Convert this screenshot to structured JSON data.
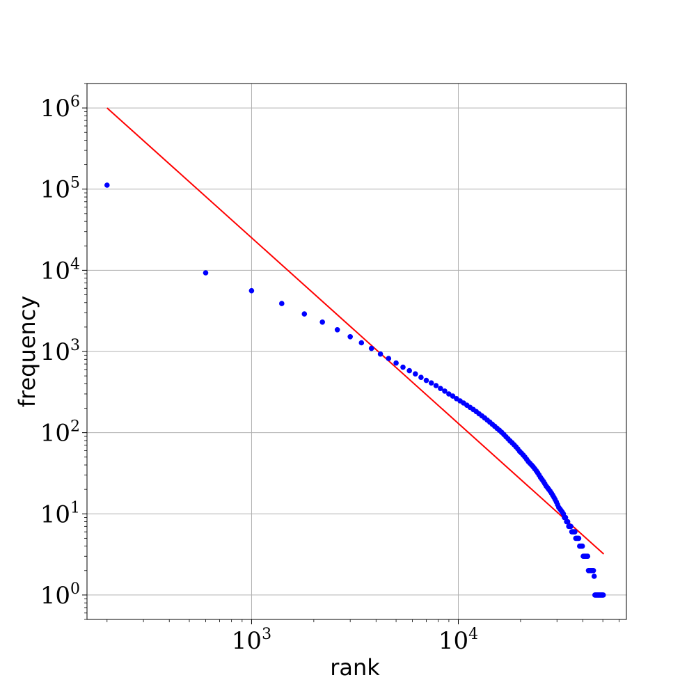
{
  "chart_data": {
    "type": "scatter",
    "title": "",
    "xlabel": "rank",
    "ylabel": "frequency",
    "xscale": "log",
    "yscale": "log",
    "xlim": [
      160,
      65000
    ],
    "ylim": [
      0.5,
      2000000
    ],
    "grid": true,
    "x_ticks": [
      {
        "value": 1000,
        "base": "10",
        "exp": "3"
      },
      {
        "value": 10000,
        "base": "10",
        "exp": "4"
      }
    ],
    "y_ticks": [
      {
        "value": 1,
        "base": "10",
        "exp": "0"
      },
      {
        "value": 10,
        "base": "10",
        "exp": "1"
      },
      {
        "value": 100,
        "base": "10",
        "exp": "2"
      },
      {
        "value": 1000,
        "base": "10",
        "exp": "3"
      },
      {
        "value": 10000,
        "base": "10",
        "exp": "4"
      },
      {
        "value": 100000,
        "base": "10",
        "exp": "5"
      },
      {
        "value": 1000000,
        "base": "10",
        "exp": "6"
      }
    ],
    "series": [
      {
        "kind": "scatter",
        "color": "#0000ff",
        "points": [
          [
            200,
            112000
          ],
          [
            600,
            9300
          ],
          [
            1000,
            5600
          ],
          [
            1400,
            3900
          ],
          [
            1800,
            2900
          ],
          [
            2200,
            2300
          ],
          [
            2600,
            1850
          ],
          [
            3000,
            1520
          ],
          [
            3400,
            1280
          ],
          [
            3800,
            1090
          ],
          [
            4200,
            930
          ],
          [
            4600,
            820
          ],
          [
            5000,
            720
          ],
          [
            5400,
            640
          ],
          [
            5800,
            580
          ],
          [
            6200,
            530
          ],
          [
            6600,
            480
          ],
          [
            7000,
            440
          ],
          [
            7400,
            410
          ],
          [
            7800,
            380
          ],
          [
            8200,
            350
          ],
          [
            8600,
            325
          ],
          [
            9000,
            300
          ],
          [
            9400,
            282
          ],
          [
            9800,
            262
          ],
          [
            10200,
            246
          ],
          [
            10600,
            232
          ],
          [
            11000,
            218
          ],
          [
            11400,
            205
          ],
          [
            11800,
            193
          ],
          [
            12200,
            182
          ],
          [
            12600,
            171
          ],
          [
            13000,
            161
          ],
          [
            13400,
            152
          ],
          [
            13800,
            143
          ],
          [
            14200,
            135
          ],
          [
            14600,
            127
          ],
          [
            15000,
            120
          ],
          [
            15400,
            113
          ],
          [
            15800,
            107
          ],
          [
            16200,
            101
          ],
          [
            16600,
            95
          ],
          [
            17000,
            89
          ],
          [
            17400,
            84
          ],
          [
            17800,
            79
          ],
          [
            18200,
            75
          ],
          [
            18600,
            71
          ],
          [
            19000,
            67
          ],
          [
            19400,
            63
          ],
          [
            19800,
            59
          ],
          [
            20200,
            56
          ],
          [
            20600,
            53
          ],
          [
            21000,
            50
          ],
          [
            21400,
            47
          ],
          [
            21800,
            44
          ],
          [
            22200,
            42
          ],
          [
            22600,
            40
          ],
          [
            23000,
            38
          ],
          [
            23400,
            36
          ],
          [
            23800,
            34
          ],
          [
            24200,
            32
          ],
          [
            24600,
            30
          ],
          [
            25000,
            28
          ],
          [
            25400,
            26.5
          ],
          [
            25800,
            25
          ],
          [
            26200,
            23.5
          ],
          [
            26600,
            22
          ],
          [
            27000,
            21
          ],
          [
            27400,
            20
          ],
          [
            27800,
            19
          ],
          [
            28200,
            18
          ],
          [
            28600,
            17
          ],
          [
            29000,
            16
          ],
          [
            29400,
            15
          ],
          [
            29800,
            14
          ],
          [
            30200,
            13
          ],
          [
            30600,
            12
          ],
          [
            31000,
            11.5
          ],
          [
            31400,
            11
          ],
          [
            31800,
            10.5
          ],
          [
            32200,
            10
          ],
          [
            32600,
            9
          ],
          [
            33000,
            9
          ],
          [
            33400,
            8
          ],
          [
            33800,
            8
          ],
          [
            34200,
            7
          ],
          [
            34600,
            7
          ],
          [
            35000,
            7
          ],
          [
            35400,
            6
          ],
          [
            35800,
            6
          ],
          [
            36200,
            6
          ],
          [
            36600,
            6
          ],
          [
            37000,
            5
          ],
          [
            37400,
            5
          ],
          [
            37800,
            5
          ],
          [
            38200,
            5
          ],
          [
            38600,
            4
          ],
          [
            39000,
            4
          ],
          [
            39400,
            4
          ],
          [
            39800,
            4
          ],
          [
            40200,
            3
          ],
          [
            40600,
            3
          ],
          [
            41000,
            3
          ],
          [
            41400,
            3
          ],
          [
            41800,
            3
          ],
          [
            42200,
            3
          ],
          [
            42600,
            2
          ],
          [
            43000,
            2
          ],
          [
            43400,
            2
          ],
          [
            43800,
            2
          ],
          [
            44200,
            2
          ],
          [
            44600,
            2
          ],
          [
            45000,
            2
          ],
          [
            45400,
            1.7
          ],
          [
            45800,
            1
          ],
          [
            46200,
            1
          ],
          [
            46600,
            1
          ],
          [
            47000,
            1
          ],
          [
            47400,
            1
          ],
          [
            47800,
            1
          ],
          [
            48200,
            1
          ],
          [
            48600,
            1
          ],
          [
            49000,
            1
          ],
          [
            49400,
            1
          ],
          [
            49800,
            1
          ],
          [
            50200,
            1
          ]
        ]
      },
      {
        "kind": "line",
        "color": "#ff0000",
        "points": [
          [
            200,
            1000000
          ],
          [
            50500,
            3.2
          ]
        ]
      }
    ]
  }
}
